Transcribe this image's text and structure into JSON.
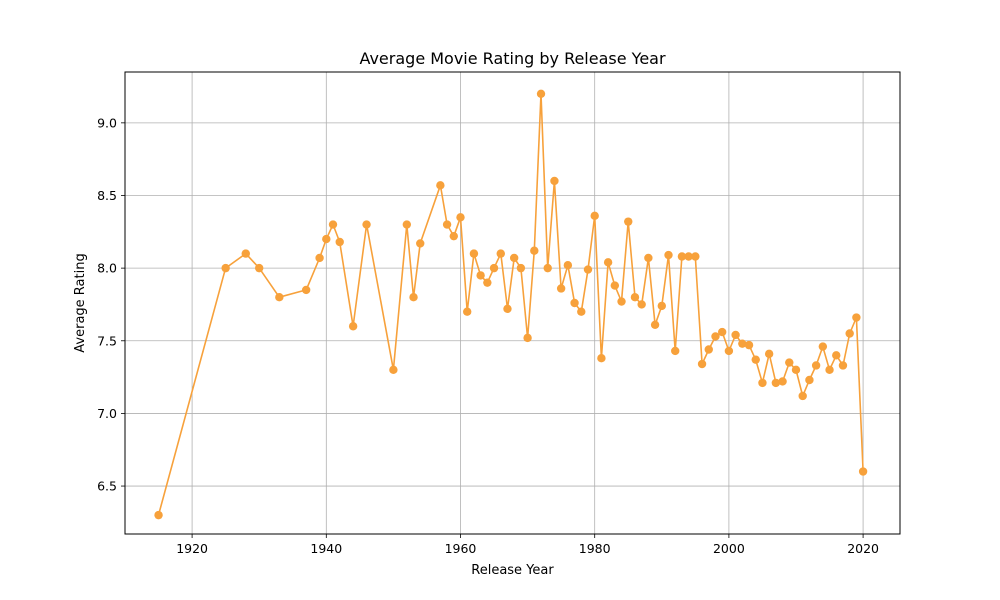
{
  "chart_data": {
    "type": "line",
    "title": "Average Movie Rating by Release Year",
    "xlabel": "Release Year",
    "ylabel": "Average Rating",
    "xlim": [
      1910,
      2025.5
    ],
    "ylim": [
      6.17,
      9.35
    ],
    "xticks": [
      1920,
      1940,
      1960,
      1980,
      2000,
      2020
    ],
    "yticks": [
      6.5,
      7.0,
      7.5,
      8.0,
      8.5,
      9.0
    ],
    "xtick_labels": [
      "1920",
      "1940",
      "1960",
      "1980",
      "2000",
      "2020"
    ],
    "ytick_labels": [
      "6.5",
      "7.0",
      "7.5",
      "8.0",
      "8.5",
      "9.0"
    ],
    "grid": true,
    "color": "#f7a13b",
    "marker": "circle",
    "series": [
      {
        "x": [
          1915,
          1925,
          1928,
          1930,
          1933,
          1937,
          1939,
          1940,
          1941,
          1942,
          1944,
          1946,
          1950,
          1952,
          1953,
          1954,
          1957,
          1958,
          1959,
          1960,
          1961,
          1962,
          1963,
          1964,
          1965,
          1966,
          1967,
          1968,
          1969,
          1970,
          1971,
          1972,
          1973,
          1974,
          1975,
          1976,
          1977,
          1978,
          1979,
          1980,
          1981,
          1982,
          1983,
          1984,
          1985,
          1986,
          1987,
          1988,
          1989,
          1990,
          1991,
          1992,
          1993,
          1994,
          1995,
          1996,
          1997,
          1998,
          1999,
          2000,
          2001,
          2002,
          2003,
          2004,
          2005,
          2006,
          2007,
          2008,
          2009,
          2010,
          2011,
          2012,
          2013,
          2014,
          2015,
          2016,
          2017,
          2018,
          2019,
          2020
        ],
        "values": [
          6.3,
          8.0,
          8.1,
          8.0,
          7.8,
          7.85,
          8.07,
          8.2,
          8.3,
          8.18,
          7.6,
          8.3,
          7.3,
          8.3,
          7.8,
          8.17,
          8.57,
          8.3,
          8.22,
          8.35,
          7.7,
          8.1,
          7.95,
          7.9,
          8.0,
          8.1,
          7.72,
          8.07,
          8.0,
          7.52,
          8.12,
          9.2,
          8.0,
          8.6,
          7.86,
          8.02,
          7.76,
          7.7,
          7.99,
          8.36,
          7.38,
          8.04,
          7.88,
          7.77,
          8.32,
          7.8,
          7.75,
          8.07,
          7.61,
          7.74,
          8.09,
          7.43,
          8.08,
          8.08,
          8.08,
          7.34,
          7.44,
          7.53,
          7.56,
          7.43,
          7.54,
          7.48,
          7.47,
          7.37,
          7.21,
          7.41,
          7.21,
          7.22,
          7.35,
          7.3,
          7.12,
          7.23,
          7.33,
          7.46,
          7.3,
          7.4,
          7.33,
          7.55,
          7.66,
          6.6
        ]
      }
    ]
  }
}
